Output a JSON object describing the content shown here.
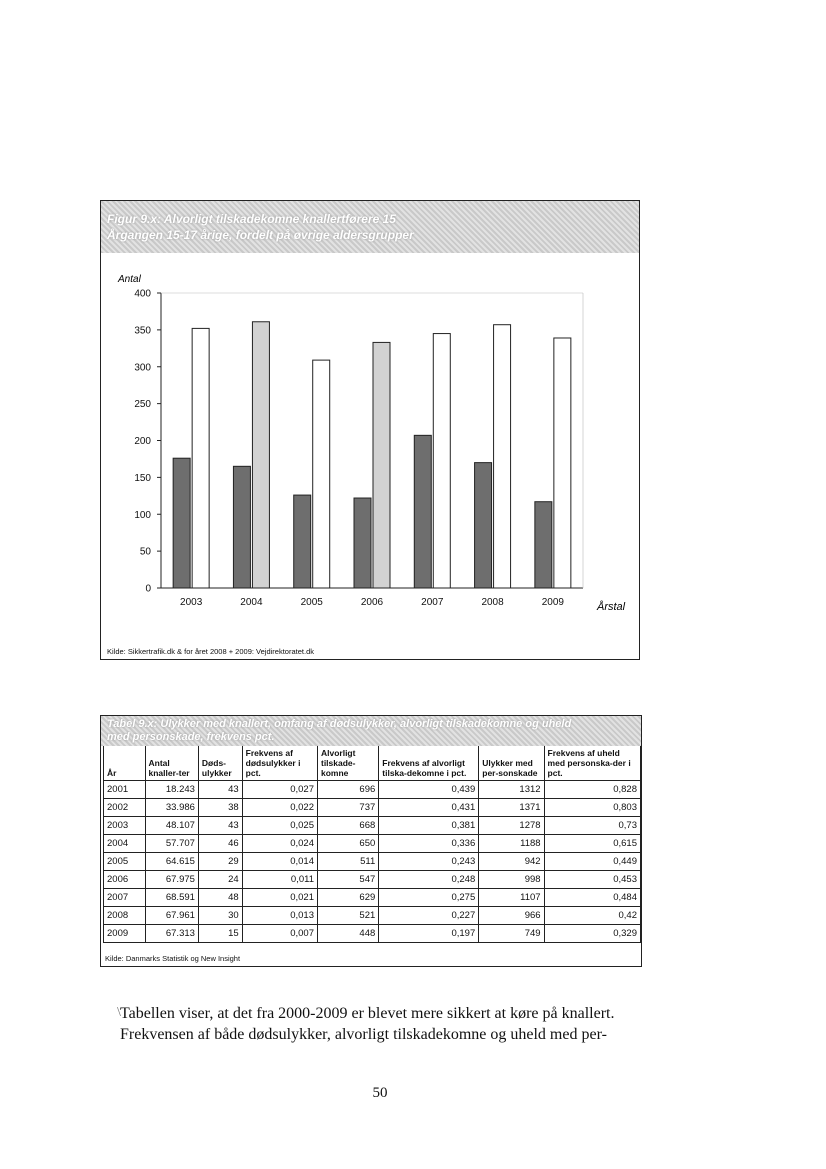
{
  "figure": {
    "header_lines": [
      "Figur 9.x: Alvorligt tilskadekomne knallertførere 15",
      "Årgangen 15-17 årige, fordelt på øvrige aldersgrupper"
    ],
    "source": "Kilde: Sikkertrafik.dk & for året 2008 + 2009: Vejdirektoratet.dk"
  },
  "chart_data": {
    "type": "bar",
    "ylabel": "Antal",
    "xlabel": "Årstal",
    "ylim": [
      0,
      400
    ],
    "yticks": [
      0,
      50,
      100,
      150,
      200,
      250,
      300,
      350,
      400
    ],
    "categories": [
      "2003",
      "2004",
      "2005",
      "2006",
      "2007",
      "2008",
      "2009"
    ],
    "series": [
      {
        "values": [
          176,
          165,
          126,
          122,
          207,
          170,
          117
        ],
        "color": "#6e6e6e"
      },
      {
        "values": [
          352,
          361,
          309,
          333,
          345,
          357,
          339
        ],
        "color_by_category": [
          "#ffffff",
          "#d2d2d2",
          "#ffffff",
          "#d2d2d2",
          "#ffffff",
          "#ffffff",
          "#ffffff"
        ]
      }
    ],
    "grid": false
  },
  "table": {
    "header_lines": [
      "Tabel 9.x: Ulykker med knallert, omfang af dødsulykker, alvorligt tilskadekomne og uheld",
      "med personskade, frekvens pct."
    ],
    "columns": [
      "År",
      "Antal knaller-ter",
      "Døds-ulykker",
      "Frekvens af dødsulykker i pct.",
      "Alvorligt tilskade-komne",
      "Frekvens af alvorligt tilska-dekomne i pct.",
      "Ulykker med per-sonskade",
      "Frekvens af uheld med personska-der i pct."
    ],
    "rows": [
      [
        "2001",
        "18.243",
        "43",
        "0,027",
        "696",
        "0,439",
        "1312",
        "0,828"
      ],
      [
        "2002",
        "33.986",
        "38",
        "0,022",
        "737",
        "0,431",
        "1371",
        "0,803"
      ],
      [
        "2003",
        "48.107",
        "43",
        "0,025",
        "668",
        "0,381",
        "1278",
        "0,73"
      ],
      [
        "2004",
        "57.707",
        "46",
        "0,024",
        "650",
        "0,336",
        "1188",
        "0,615"
      ],
      [
        "2005",
        "64.615",
        "29",
        "0,014",
        "511",
        "0,243",
        "942",
        "0,449"
      ],
      [
        "2006",
        "67.975",
        "24",
        "0,011",
        "547",
        "0,248",
        "998",
        "0,453"
      ],
      [
        "2007",
        "68.591",
        "48",
        "0,021",
        "629",
        "0,275",
        "1107",
        "0,484"
      ],
      [
        "2008",
        "67.961",
        "30",
        "0,013",
        "521",
        "0,227",
        "966",
        "0,42"
      ],
      [
        "2009",
        "67.313",
        "15",
        "0,007",
        "448",
        "0,197",
        "749",
        "0,329"
      ]
    ],
    "source": "Kilde: Danmarks Statistik og New Insight"
  },
  "body": {
    "line1": "Tabellen viser, at det fra 2000-2009 er blevet mere sikkert at køre på knallert.",
    "line2": "Frekvensen af både dødsulykker, alvorligt tilskadekomne og uheld med per-"
  },
  "page_number": "50"
}
